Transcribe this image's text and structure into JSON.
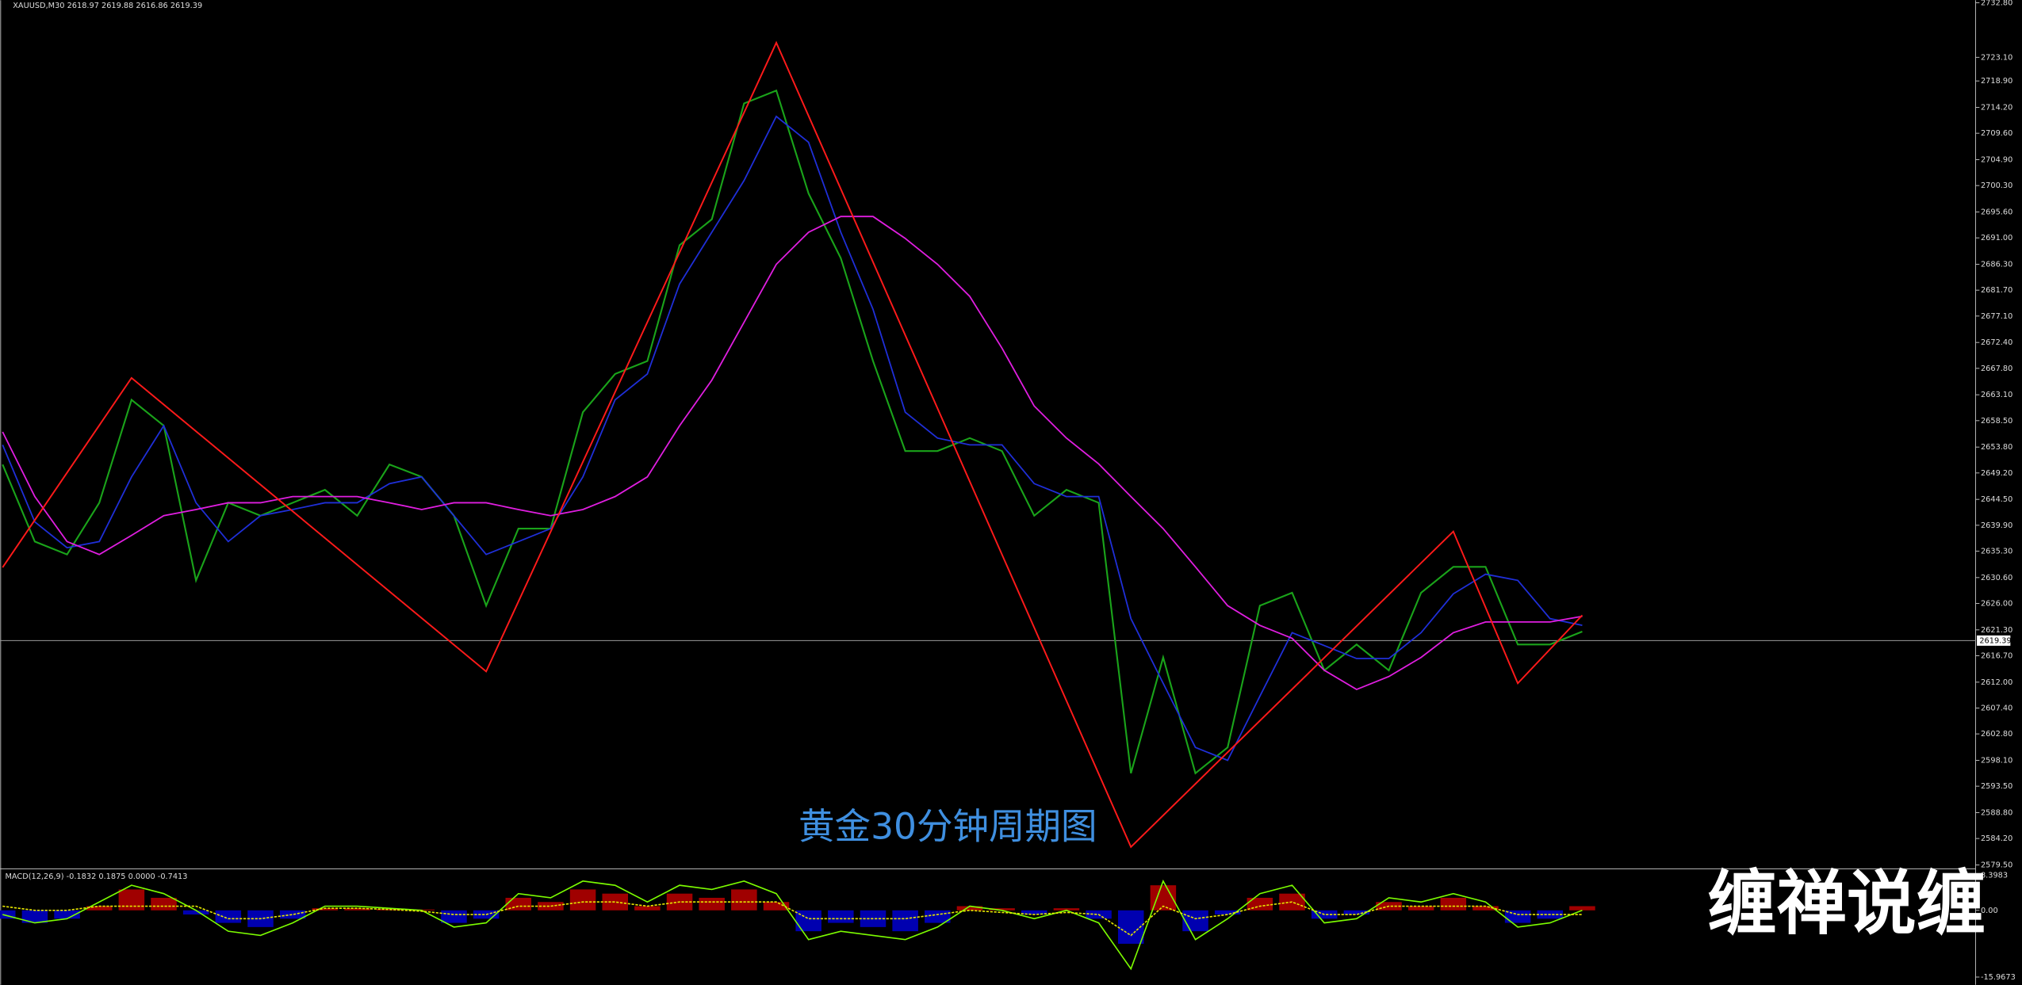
{
  "chart_data": [
    {
      "type": "line",
      "title": "XAUUSD,M30 2618.97 2619.88 2616.86 2619.39",
      "annotation": "黄金30分钟周期图",
      "watermark": "缠禅说缠",
      "last_price": 2619.39,
      "ylim": [
        2579.5,
        2732.8
      ],
      "yticks": [
        {
          "value": 2732.8,
          "label": "2732.80"
        },
        {
          "value": 2723.1,
          "label": "2723.10"
        },
        {
          "value": 2718.9,
          "label": "2718.90"
        },
        {
          "value": 2714.2,
          "label": "2714.20"
        },
        {
          "value": 2709.6,
          "label": "2709.60"
        },
        {
          "value": 2704.9,
          "label": "2704.90"
        },
        {
          "value": 2700.3,
          "label": "2700.30"
        },
        {
          "value": 2695.6,
          "label": "2695.60"
        },
        {
          "value": 2691,
          "label": "2691.00"
        },
        {
          "value": 2686.3,
          "label": "2686.30"
        },
        {
          "value": 2681.7,
          "label": "2681.70"
        },
        {
          "value": 2677.1,
          "label": "2677.10"
        },
        {
          "value": 2672.4,
          "label": "2672.40"
        },
        {
          "value": 2667.8,
          "label": "2667.80"
        },
        {
          "value": 2663.1,
          "label": "2663.10"
        },
        {
          "value": 2658.5,
          "label": "2658.50"
        },
        {
          "value": 2653.8,
          "label": "2653.80"
        },
        {
          "value": 2649.2,
          "label": "2649.20"
        },
        {
          "value": 2644.5,
          "label": "2644.50"
        },
        {
          "value": 2639.9,
          "label": "2639.90"
        },
        {
          "value": 2635.3,
          "label": "2635.30"
        },
        {
          "value": 2630.6,
          "label": "2630.60"
        },
        {
          "value": 2626,
          "label": "2626.00"
        },
        {
          "value": 2621.3,
          "label": "2621.30"
        },
        {
          "value": 2616.7,
          "label": "2616.70"
        },
        {
          "value": 2612,
          "label": "2612.00"
        },
        {
          "value": 2607.4,
          "label": "2607.40"
        },
        {
          "value": 2602.8,
          "label": "2602.80"
        },
        {
          "value": 2598.1,
          "label": "2598.10"
        },
        {
          "value": 2593.5,
          "label": "2593.50"
        },
        {
          "value": 2588.8,
          "label": "2588.80"
        },
        {
          "value": 2584.2,
          "label": "2584.20"
        },
        {
          "value": 2579.5,
          "label": "2579.50"
        }
      ],
      "series": [
        {
          "color": "#1aa31a",
          "values": [
            2650.7,
            2637.0,
            2634.7,
            2643.9,
            2662.2,
            2657.6,
            2630.1,
            2643.9,
            2641.6,
            2643.9,
            2646.2,
            2641.6,
            2650.7,
            2648.5,
            2641.6,
            2625.6,
            2639.3,
            2639.3,
            2660.0,
            2666.8,
            2669.1,
            2689.7,
            2694.3,
            2714.9,
            2717.2,
            2698.9,
            2687.4,
            2669.1,
            2653.1,
            2653.1,
            2655.4,
            2653.1,
            2641.6,
            2646.2,
            2643.9,
            2595.8,
            2616.4,
            2595.8,
            2600.4,
            2625.6,
            2627.9,
            2614.1,
            2618.7,
            2614.1,
            2627.9,
            2632.5,
            2632.5,
            2618.7,
            2618.7,
            2621.0
          ]
        },
        {
          "color": "#1f2fd8",
          "values": [
            2654.2,
            2640.5,
            2635.9,
            2637.0,
            2648.5,
            2657.6,
            2643.9,
            2637.0,
            2641.6,
            2642.7,
            2643.9,
            2643.9,
            2647.3,
            2648.5,
            2641.6,
            2634.7,
            2637.0,
            2639.3,
            2648.5,
            2662.2,
            2666.8,
            2682.8,
            2692.0,
            2701.2,
            2712.6,
            2708.0,
            2692.0,
            2678.3,
            2660.0,
            2655.4,
            2654.2,
            2654.2,
            2647.3,
            2645.0,
            2645.0,
            2623.3,
            2611.8,
            2600.4,
            2598.1,
            2609.5,
            2620.8,
            2618.5,
            2616.2,
            2616.2,
            2620.8,
            2627.7,
            2631.2,
            2630.1,
            2623.3,
            2622.1
          ]
        },
        {
          "color": "#e01ee0",
          "values": [
            2656.5,
            2645.0,
            2637.0,
            2634.7,
            2638.1,
            2641.6,
            2642.7,
            2643.9,
            2643.9,
            2645.0,
            2645.0,
            2645.0,
            2643.9,
            2642.7,
            2643.9,
            2643.9,
            2642.7,
            2641.6,
            2642.7,
            2645.0,
            2648.5,
            2657.6,
            2665.7,
            2676.0,
            2686.3,
            2692.0,
            2694.8,
            2694.8,
            2690.9,
            2686.3,
            2680.6,
            2671.4,
            2661.1,
            2655.4,
            2650.8,
            2645.0,
            2639.3,
            2632.5,
            2625.6,
            2622.1,
            2619.8,
            2614.1,
            2610.7,
            2613.0,
            2616.4,
            2620.8,
            2622.7,
            2622.7,
            2622.7,
            2623.7
          ]
        }
      ],
      "zigzag": {
        "color": "#ff1a1a",
        "x": [
          0,
          4,
          15,
          24,
          35,
          45,
          47,
          49
        ],
        "values": [
          2632.4,
          2666.1,
          2613.9,
          2725.7,
          2582.7,
          2638.8,
          2611.8,
          2623.9
        ]
      }
    },
    {
      "type": "macd",
      "title": "MACD(12,26,9) -0.1832 0.1875 0.0000 -0.7413",
      "ylim": [
        -15.9673,
        8.3983
      ],
      "yticks": [
        8.3983,
        {
          "value": 0,
          "label": "0.00"
        },
        -15.9673
      ],
      "color_up": "#a00000",
      "color_down": "#0000b0",
      "values": [
        -2,
        -3,
        -2,
        1,
        5,
        3,
        -1,
        -3,
        -4,
        -2,
        0.5,
        0.5,
        0.3,
        0.2,
        -3,
        -2,
        3,
        2,
        5,
        4,
        1,
        4,
        3,
        5,
        2,
        -5,
        -3,
        -4,
        -5,
        -3,
        1,
        0.5,
        -1,
        0.5,
        -2,
        -8,
        6,
        -5,
        -1,
        3,
        4,
        -2,
        -1,
        2,
        1,
        3,
        1,
        -3,
        -2,
        1
      ],
      "series": [
        {
          "color": "#7cfc00",
          "values": [
            -1,
            -3,
            -2,
            2,
            6,
            4,
            0,
            -5,
            -6,
            -3,
            1,
            1,
            0.5,
            0,
            -4,
            -3,
            4,
            3,
            7,
            6,
            2,
            6,
            5,
            7,
            4,
            -7,
            -5,
            -6,
            -7,
            -4,
            1,
            0,
            -2,
            0,
            -3,
            -14,
            7,
            -7,
            -2,
            4,
            6,
            -3,
            -2,
            3,
            2,
            4,
            2,
            -4,
            -3,
            0
          ]
        },
        {
          "color": "#e6e600",
          "values": [
            1,
            0,
            0,
            1,
            1,
            1,
            1,
            -2,
            -2,
            -1,
            0.5,
            0.5,
            0.2,
            -0.2,
            -1,
            -1,
            1,
            1,
            2,
            2,
            1,
            2,
            2,
            2,
            2,
            -2,
            -2,
            -2,
            -2,
            -1,
            0,
            -0.5,
            -1,
            -0.5,
            -1,
            -6,
            1,
            -2,
            -1,
            1,
            2,
            -1,
            -1,
            1,
            1,
            1,
            1,
            -1,
            -1,
            -1
          ]
        }
      ]
    }
  ]
}
